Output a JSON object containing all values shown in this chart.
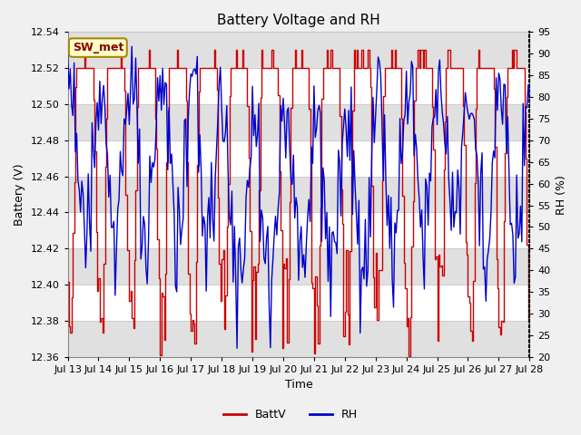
{
  "title": "Battery Voltage and RH",
  "xlabel": "Time",
  "ylabel_left": "Battery (V)",
  "ylabel_right": "RH (%)",
  "annotation": "SW_met",
  "x_tick_labels": [
    "Jul 13",
    "Jul 14",
    "Jul 15",
    "Jul 16",
    "Jul 17",
    "Jul 18",
    "Jul 19",
    "Jul 20",
    "Jul 21",
    "Jul 22",
    "Jul 23",
    "Jul 24",
    "Jul 25",
    "Jul 26",
    "Jul 27",
    "Jul 28"
  ],
  "ylim_left": [
    12.36,
    12.54
  ],
  "ylim_right": [
    20,
    95
  ],
  "yticks_left": [
    12.36,
    12.38,
    12.4,
    12.42,
    12.44,
    12.46,
    12.48,
    12.5,
    12.52,
    12.54
  ],
  "yticks_right": [
    20,
    25,
    30,
    35,
    40,
    45,
    50,
    55,
    60,
    65,
    70,
    75,
    80,
    85,
    90,
    95
  ],
  "fig_bg_color": "#f0f0f0",
  "plot_bg_color": "#ffffff",
  "band_color_dark": "#e0e0e0",
  "battv_color": "#cc0000",
  "rh_color": "#0000cc",
  "legend_battv": "BattV",
  "legend_rh": "RH",
  "title_fontsize": 11,
  "axis_label_fontsize": 9,
  "tick_fontsize": 8,
  "legend_fontsize": 9,
  "annotation_fontsize": 9,
  "grid_color": "#cccccc",
  "n_days": 16,
  "hours_per_day": 24
}
